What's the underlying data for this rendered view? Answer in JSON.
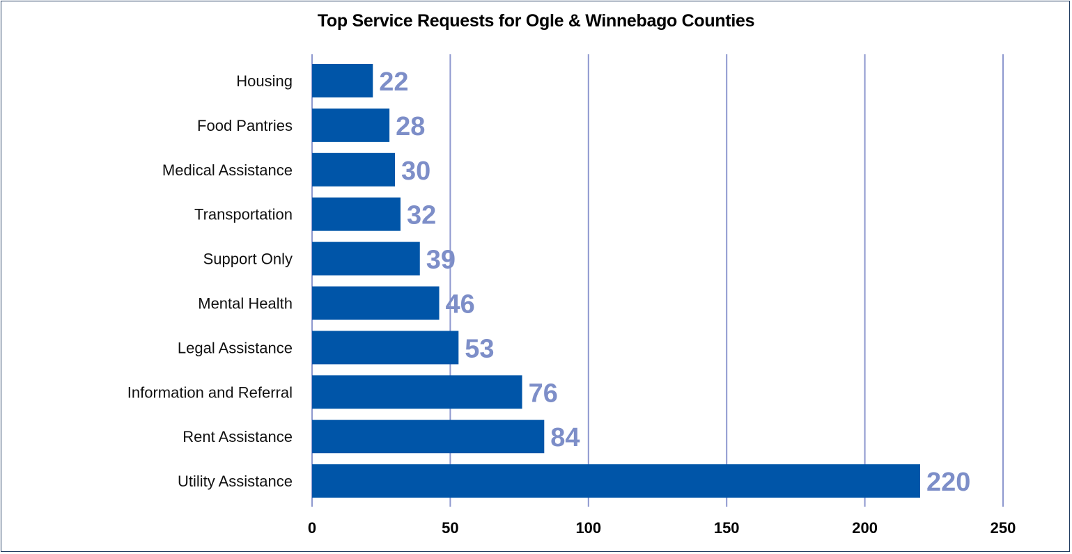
{
  "chart_data": {
    "type": "bar",
    "orientation": "horizontal",
    "title": "Top Service Requests for Ogle & Winnebago Counties",
    "categories": [
      "Housing",
      "Food Pantries",
      "Medical Assistance",
      "Transportation",
      "Support Only",
      "Mental Health",
      "Legal Assistance",
      "Information and Referral",
      "Rent Assistance",
      "Utility Assistance"
    ],
    "values": [
      22,
      28,
      30,
      32,
      39,
      46,
      53,
      76,
      84,
      220
    ],
    "data_labels": [
      "22",
      "28",
      "30",
      "32",
      "39",
      "46",
      "53",
      "76",
      "84",
      "220"
    ],
    "x_ticks": [
      "0",
      "50",
      "100",
      "150",
      "200",
      "250"
    ],
    "xlim": [
      0,
      250
    ],
    "xlabel": "",
    "ylabel": "",
    "grid": "vertical",
    "legend": "none",
    "colors": {
      "bar": "#0055a8",
      "data_label": "#7d8ec8",
      "grid": "#8e98cf"
    }
  }
}
